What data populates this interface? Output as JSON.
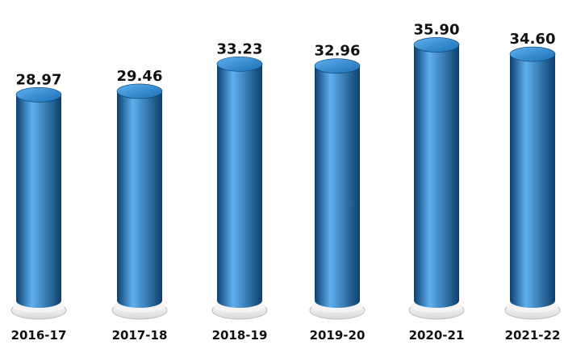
{
  "chart_data": {
    "type": "bar",
    "categories": [
      "2016-17",
      "2017-18",
      "2018-19",
      "2019-20",
      "2020-21",
      "2021-22"
    ],
    "values": [
      28.97,
      29.46,
      33.23,
      32.96,
      35.9,
      34.6
    ],
    "value_labels": [
      "28.97",
      "29.46",
      "33.23",
      "32.96",
      "35.90",
      "34.60"
    ],
    "title": "",
    "xlabel": "",
    "ylabel": "",
    "grid": false,
    "bar_color": "#1a6fb5",
    "bar_highlight_color": "#5fb0ef",
    "bar_shadow_color": "#0c3f6e",
    "base_color": "#d9d9d9"
  }
}
